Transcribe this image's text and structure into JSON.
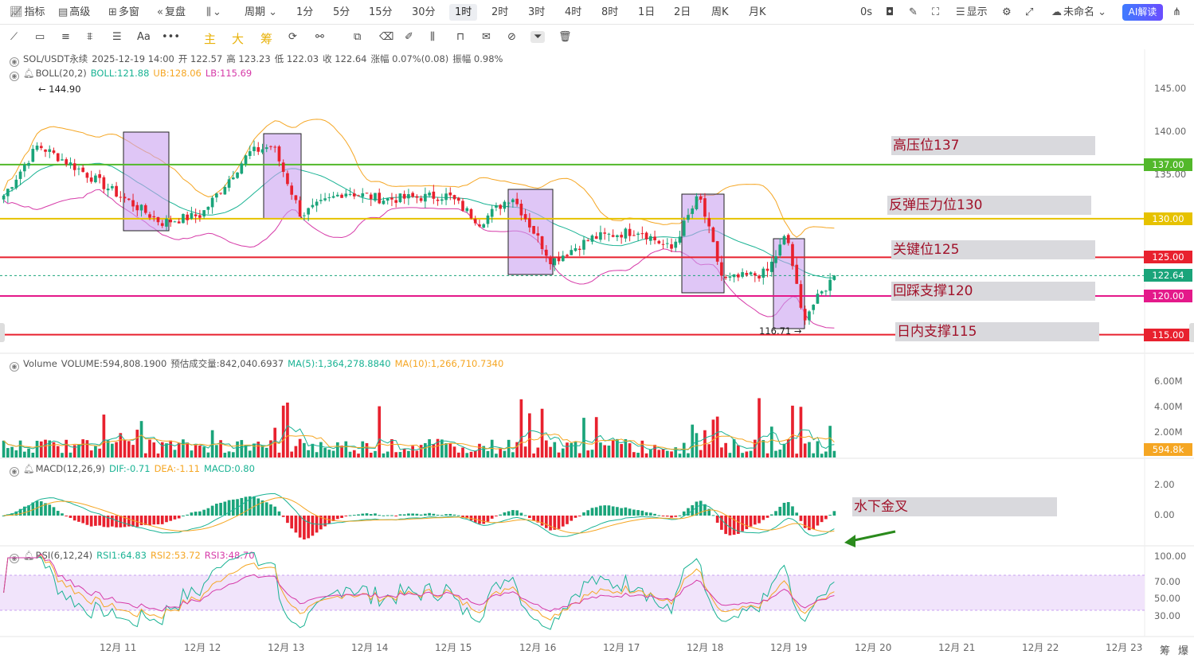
{
  "toolbar": {
    "indicators": "指标",
    "advanced": "高级",
    "multi_window": "多窗",
    "replay": "复盘",
    "period": "周期",
    "timeframes": [
      "1分",
      "5分",
      "15分",
      "30分",
      "1时",
      "2时",
      "3时",
      "4时",
      "8时",
      "1日",
      "2日",
      "周K",
      "月K"
    ],
    "active_timeframe": "1时",
    "countdown": "0s",
    "display": "显示",
    "layout_name": "未命名",
    "ai_button": "AI解读"
  },
  "drawing_tools": {
    "text_tool": "Aa",
    "main": "主",
    "big": "大",
    "chips": "筹"
  },
  "main_legend": {
    "symbol": "SOL/USDT永续",
    "datetime": "2025-12-19 14:00",
    "open": "开 122.57",
    "high": "高 123.23",
    "low": "低 122.03",
    "close": "收 122.64",
    "change": "涨幅 0.07%(0.08)",
    "amplitude": "振幅 0.98%"
  },
  "boll_legend": {
    "name": "BOLL(20,2)",
    "mid": "BOLL:121.88",
    "ub": "UB:128.06",
    "lb": "LB:115.69"
  },
  "volume_legend": {
    "name": "Volume",
    "volume": "VOLUME:594,808.1900",
    "estimate": "预估成交量:842,040.6937",
    "ma5": "MA(5):1,364,278.8840",
    "ma10": "MA(10):1,266,710.7340"
  },
  "macd_legend": {
    "name": "MACD(12,26,9)",
    "dif": "DIF:-0.71",
    "dea": "DEA:-1.11",
    "macd": "MACD:0.80"
  },
  "rsi_legend": {
    "name": "RSI(6,12,24)",
    "rsi1": "RSI1:64.83",
    "rsi2": "RSI2:53.72",
    "rsi3": "RSI3:48.70"
  },
  "price_axis": [
    "145.00",
    "140.00",
    "135.00"
  ],
  "volume_axis": [
    "6.00M",
    "4.00M",
    "2.00M"
  ],
  "macd_axis": [
    "2.00",
    "0.00"
  ],
  "rsi_axis": [
    "100.00",
    "70.00",
    "50.00",
    "30.00"
  ],
  "price_tags": [
    {
      "label": "137.00",
      "color": "#52b82a"
    },
    {
      "label": "130.00",
      "color": "#e6c200"
    },
    {
      "label": "125.00",
      "color": "#e8212e"
    },
    {
      "label": "122.64",
      "color": "#1aa47a"
    },
    {
      "label": "120.00",
      "color": "#e4198a"
    },
    {
      "label": "115.00",
      "color": "#e8212e"
    }
  ],
  "volume_tag": {
    "label": "594.8k",
    "color": "#f5a623"
  },
  "annotations": {
    "high_marker": "144.90",
    "low_marker": "116.71",
    "resistance_137": "高压位137",
    "rebound_130": "反弹压力位130",
    "key_125": "关键位125",
    "support_120": "回踩支撑120",
    "intraday_115": "日内支撑115",
    "macd_note": "水下金叉"
  },
  "dates": [
    "12月 11",
    "12月 12",
    "12月 13",
    "12月 14",
    "12月 15",
    "12月 16",
    "12月 17",
    "12月 18",
    "12月 19",
    "12月 20",
    "12月 21",
    "12月 22",
    "12月 23"
  ],
  "corner": {
    "a": "筹",
    "b": "爆"
  },
  "colors": {
    "up": "#1aa47a",
    "down": "#e8212e",
    "boll_mid": "#1ab394",
    "boll_ub": "#f5a623",
    "boll_lb": "#d63aa8",
    "highlight": "#c9a0f0"
  },
  "chart_data": {
    "type": "candlestick",
    "symbol": "SOL/USDT永续",
    "interval": "1h",
    "price_range": [
      113,
      148
    ],
    "horizontal_levels": [
      137,
      130,
      125,
      120,
      115
    ],
    "current_price": 122.64,
    "marked_high": 144.9,
    "marked_low": 116.71,
    "close_path": [
      {
        "x": "12月 10",
        "y": 133
      },
      {
        "x": "12月 11",
        "y": 139.5
      },
      {
        "x": "12月 11",
        "y": 136.5
      },
      {
        "x": "12月 11",
        "y": 129.5
      },
      {
        "x": "12月 12",
        "y": 130.5
      },
      {
        "x": "12月 12",
        "y": 138.5
      },
      {
        "x": "12月 13",
        "y": 139.5
      },
      {
        "x": "12月 13",
        "y": 130.5
      },
      {
        "x": "12月 14",
        "y": 133.5
      },
      {
        "x": "12月 14",
        "y": 132.5
      },
      {
        "x": "12月 15",
        "y": 133
      },
      {
        "x": "12月 15",
        "y": 129.5
      },
      {
        "x": "12月 16",
        "y": 133
      },
      {
        "x": "12月 16",
        "y": 124.5
      },
      {
        "x": "12月 17",
        "y": 127.5
      },
      {
        "x": "12月 17",
        "y": 128.5
      },
      {
        "x": "12月 18",
        "y": 126
      },
      {
        "x": "12月 18",
        "y": 133
      },
      {
        "x": "12月 18",
        "y": 122
      },
      {
        "x": "12月 19",
        "y": 123
      },
      {
        "x": "12月 19",
        "y": 128
      },
      {
        "x": "12月 19",
        "y": 117
      },
      {
        "x": "12月 19",
        "y": 122.64
      }
    ]
  }
}
